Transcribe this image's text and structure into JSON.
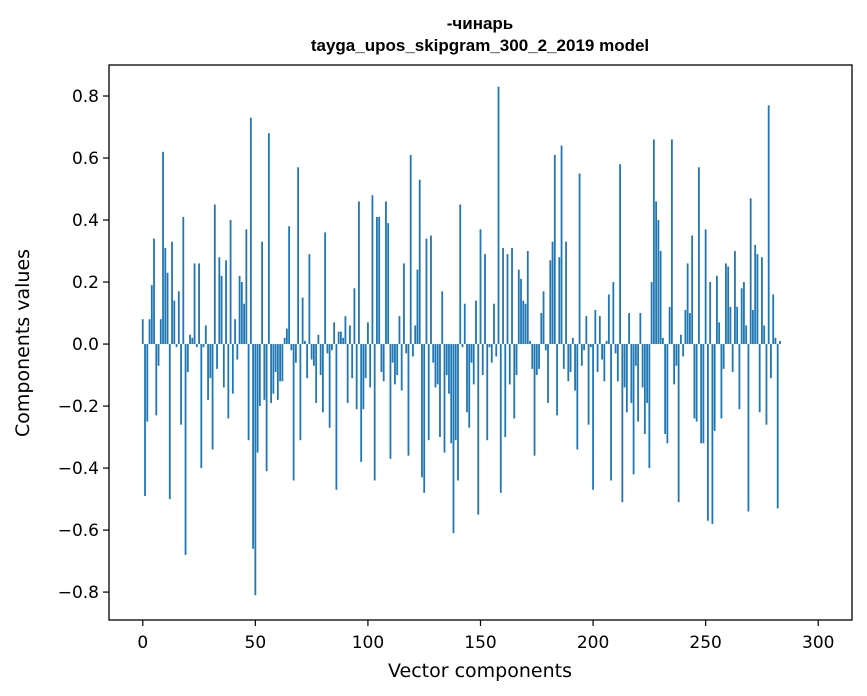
{
  "chart_data": {
    "type": "bar",
    "title_line1": "-чинарь",
    "title_line2": "tayga_upos_skipgram_300_2_2019 model",
    "xlabel": "Vector components",
    "ylabel": "Components values",
    "xlim": [
      -15,
      315
    ],
    "ylim": [
      -0.89,
      0.9
    ],
    "x_ticks": [
      0,
      50,
      100,
      150,
      200,
      250,
      300
    ],
    "y_ticks": [
      -0.8,
      -0.6,
      -0.4,
      -0.2,
      0.0,
      0.2,
      0.4,
      0.6,
      0.8
    ],
    "y_tick_labels": [
      "−0.8",
      "−0.6",
      "−0.4",
      "−0.2",
      "0.0",
      "0.2",
      "0.4",
      "0.6",
      "0.8"
    ],
    "bar_color": "#1f77b4",
    "values": [
      0.08,
      -0.49,
      -0.25,
      0.08,
      0.19,
      0.34,
      -0.23,
      -0.07,
      0.08,
      0.62,
      0.31,
      0.23,
      -0.5,
      0.33,
      0.14,
      -0.01,
      0.17,
      -0.26,
      0.41,
      -0.68,
      -0.09,
      0.03,
      0.02,
      0.26,
      -0.01,
      0.26,
      -0.4,
      -0.01,
      0.06,
      -0.18,
      -0.11,
      -0.34,
      0.45,
      -0.08,
      0.28,
      0.22,
      -0.14,
      0.27,
      -0.24,
      0.4,
      -0.16,
      0.08,
      -0.05,
      0.22,
      0.2,
      0.13,
      0.37,
      -0.31,
      0.73,
      -0.66,
      -0.81,
      -0.35,
      -0.2,
      0.33,
      -0.18,
      -0.41,
      0.68,
      -0.19,
      -0.16,
      -0.09,
      -0.18,
      -0.12,
      -0.12,
      0.02,
      0.05,
      0.38,
      -0.02,
      -0.44,
      -0.06,
      0.57,
      -0.31,
      0.15,
      0.01,
      -0.11,
      0.29,
      -0.05,
      -0.07,
      -0.19,
      0.03,
      -0.1,
      -0.22,
      0.36,
      -0.03,
      -0.27,
      -0.02,
      0.07,
      -0.47,
      0.04,
      0.04,
      0.02,
      0.09,
      -0.19,
      0.06,
      -0.11,
      0.18,
      -0.21,
      0.46,
      -0.38,
      -0.21,
      -0.11,
      0.07,
      -0.14,
      0.48,
      -0.44,
      0.41,
      0.41,
      -0.09,
      -0.12,
      0.46,
      0.39,
      -0.37,
      -0.06,
      -0.13,
      -0.1,
      0.09,
      -0.15,
      0.26,
      -0.03,
      -0.36,
      0.61,
      -0.04,
      0.06,
      0.24,
      0.53,
      -0.43,
      -0.48,
      0.34,
      -0.31,
      0.35,
      -0.06,
      -0.14,
      -0.13,
      -0.3,
      0.17,
      -0.35,
      -0.1,
      -0.16,
      -0.32,
      -0.61,
      -0.31,
      -0.44,
      0.45,
      -0.01,
      0.13,
      -0.22,
      -0.27,
      -0.06,
      -0.13,
      0.14,
      -0.55,
      0.37,
      -0.1,
      0.29,
      -0.31,
      -0.01,
      -0.06,
      0.13,
      -0.04,
      0.83,
      -0.48,
      0.31,
      -0.3,
      0.29,
      -0.13,
      0.31,
      -0.24,
      -0.1,
      0.24,
      0.21,
      0.14,
      0.13,
      0.3,
      0.01,
      -0.08,
      -0.36,
      -0.1,
      -0.08,
      0.1,
      0.17,
      -0.02,
      -0.19,
      0.27,
      0.33,
      0.61,
      -0.23,
      0.28,
      0.64,
      -0.08,
      0.33,
      -0.12,
      -0.09,
      0.02,
      -0.15,
      -0.34,
      0.55,
      -0.07,
      -0.02,
      0.09,
      -0.26,
      -0.01,
      -0.47,
      0.11,
      -0.09,
      0.09,
      -0.05,
      -0.12,
      0.01,
      0.16,
      -0.44,
      0.2,
      -0.03,
      -0.12,
      0.58,
      -0.51,
      -0.14,
      -0.22,
      0.1,
      -0.19,
      -0.42,
      -0.07,
      -0.25,
      0.1,
      -0.14,
      -0.29,
      -0.19,
      -0.4,
      0.2,
      0.66,
      0.46,
      0.4,
      0.3,
      0.02,
      -0.29,
      -0.32,
      0.12,
      0.66,
      -0.13,
      -0.07,
      -0.51,
      0.03,
      -0.04,
      0.11,
      0.26,
      0.1,
      0.35,
      -0.24,
      -0.25,
      0.57,
      -0.32,
      -0.32,
      0.37,
      -0.57,
      0.2,
      -0.58,
      -0.28,
      0.22,
      0.07,
      -0.24,
      -0.08,
      0.26,
      0.25,
      0.12,
      -0.09,
      0.3,
      0.12,
      -0.21,
      0.18,
      0.2,
      0.06,
      -0.54,
      0.47,
      0.11,
      0.32,
      0.29,
      -0.22,
      0.28,
      0.06,
      -0.26,
      0.77,
      -0.11,
      0.16,
      0.02,
      -0.53,
      0.01
    ]
  }
}
